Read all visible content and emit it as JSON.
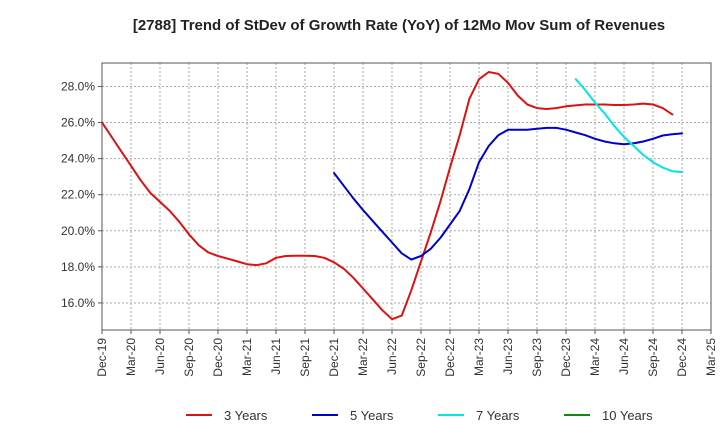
{
  "chart_data": {
    "type": "line",
    "title": "[2788]  Trend of StDev of Growth Rate (YoY) of 12Mo Mov Sum of Revenues",
    "xlabel": "",
    "ylabel": "",
    "ylim": [
      14.5,
      29.3
    ],
    "yticks": [
      16,
      18,
      20,
      22,
      24,
      26,
      28
    ],
    "ytick_labels": [
      "16.0%",
      "18.0%",
      "20.0%",
      "22.0%",
      "24.0%",
      "26.0%",
      "28.0%"
    ],
    "xlim": [
      0,
      63
    ],
    "xticks": [
      0,
      3,
      6,
      9,
      12,
      15,
      18,
      21,
      24,
      27,
      30,
      33,
      36,
      39,
      42,
      45,
      48,
      51,
      54,
      57,
      60,
      63
    ],
    "xtick_labels": [
      "Dec-19",
      "Mar-20",
      "Jun-20",
      "Sep-20",
      "Dec-20",
      "Mar-21",
      "Jun-21",
      "Sep-21",
      "Dec-21",
      "Mar-22",
      "Jun-22",
      "Sep-22",
      "Dec-22",
      "Mar-23",
      "Jun-23",
      "Sep-23",
      "Dec-23",
      "Mar-24",
      "Jun-24",
      "Sep-24",
      "Dec-24",
      "Mar-25"
    ],
    "grid": true,
    "legend_position": "bottom",
    "series": [
      {
        "name": "3 Years",
        "color": "#dd1111",
        "start": 0,
        "values": [
          26.0,
          25.2,
          24.4,
          23.6,
          22.8,
          22.1,
          21.6,
          21.1,
          20.5,
          19.8,
          19.2,
          18.8,
          18.6,
          18.45,
          18.3,
          18.15,
          18.1,
          18.2,
          18.5,
          18.6,
          18.62,
          18.62,
          18.6,
          18.5,
          18.25,
          17.9,
          17.4,
          16.8,
          16.2,
          15.6,
          15.1,
          15.3,
          16.7,
          18.3,
          19.9,
          21.6,
          23.5,
          25.3,
          27.3,
          28.4,
          28.8,
          28.7,
          28.2,
          27.5,
          27.0,
          26.8,
          26.75,
          26.8,
          26.9,
          26.95,
          27.0,
          27.0,
          27.0,
          26.97,
          26.97,
          27.0,
          27.05,
          27.0,
          26.8,
          26.45
        ]
      },
      {
        "name": "5 Years",
        "color": "#0000cc",
        "start": 24,
        "values": [
          23.2,
          22.5,
          21.8,
          21.15,
          20.55,
          19.95,
          19.35,
          18.75,
          18.4,
          18.6,
          19.0,
          19.6,
          20.35,
          21.1,
          22.3,
          23.8,
          24.7,
          25.3,
          25.6,
          25.6,
          25.6,
          25.65,
          25.7,
          25.7,
          25.6,
          25.45,
          25.3,
          25.1,
          24.95,
          24.85,
          24.8,
          24.85,
          24.95,
          25.1,
          25.28,
          25.35,
          25.4
        ]
      },
      {
        "name": "7 Years",
        "color": "#00e5e5",
        "start": 49,
        "values": [
          28.4,
          27.8,
          27.1,
          26.5,
          25.8,
          25.2,
          24.7,
          24.2,
          23.8,
          23.5,
          23.3,
          23.25
        ]
      },
      {
        "name": "10 Years",
        "color": "#118811",
        "start": 60,
        "values": []
      }
    ]
  }
}
